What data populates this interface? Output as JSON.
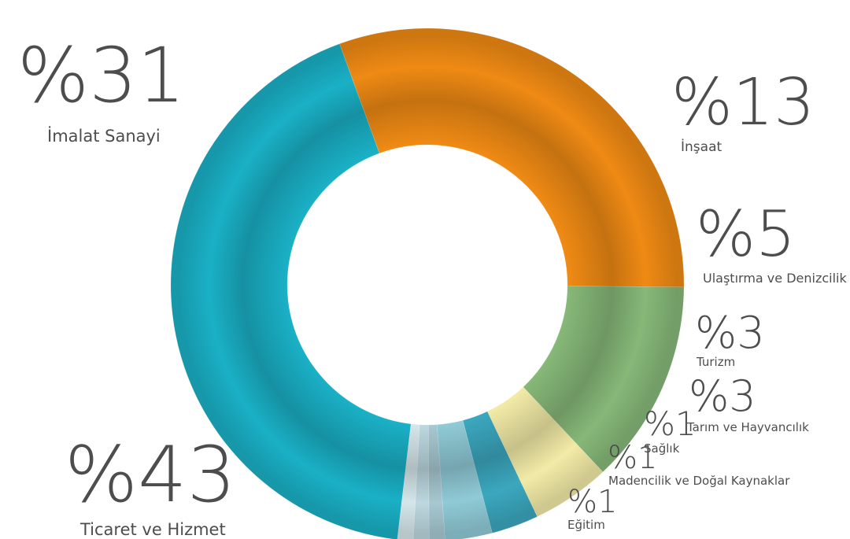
{
  "chart_data": {
    "type": "pie",
    "variant": "donut",
    "categories": [
      "Ticaret ve Hizmet",
      "İmalat Sanayi",
      "İnşaat",
      "Ulaştırma ve Denizcilik",
      "Turizm",
      "Tarım ve Hayvancılık",
      "Sağlık",
      "Madencilik ve Doğal Kaynaklar",
      "Eğitim"
    ],
    "values": [
      43,
      31,
      13,
      5,
      3,
      3,
      1,
      1,
      1
    ],
    "value_labels": [
      "%43",
      "%31",
      "%13",
      "%5",
      "%3",
      "%3",
      "%1",
      "%1",
      "%1"
    ],
    "colors": [
      "#1ab0c6",
      "#ef8a14",
      "#86b878",
      "#f2eaa6",
      "#3ba7be",
      "#8fcad6",
      "#a7c8d1",
      "#bcd7df",
      "#d4e6ea"
    ],
    "legend": "none"
  }
}
